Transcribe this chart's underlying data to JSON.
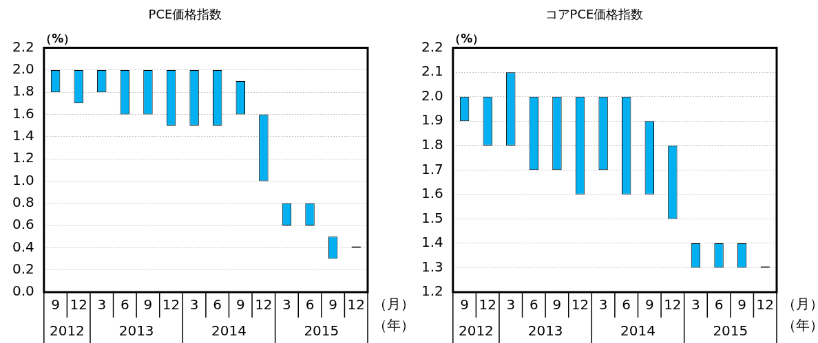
{
  "chart_data": [
    {
      "type": "bar",
      "title": "PCE価格指数",
      "ylabel": "（%）",
      "categories": [
        "9",
        "12",
        "3",
        "6",
        "9",
        "12",
        "3",
        "6",
        "9",
        "12",
        "3",
        "6",
        "9",
        "12"
      ],
      "base": [
        1.8,
        1.7,
        1.8,
        1.6,
        1.6,
        1.5,
        1.5,
        1.5,
        1.6,
        1.0,
        0.6,
        0.6,
        0.3,
        0.4
      ],
      "values": [
        0.2,
        0.3,
        0.2,
        0.4,
        0.4,
        0.5,
        0.5,
        0.5,
        0.3,
        0.6,
        0.2,
        0.2,
        0.2,
        0
      ],
      "colors": [
        "#00b0f0",
        "#00b0f0",
        "#00b0f0",
        "#00b0f0",
        "#00b0f0",
        "#00b0f0",
        "#00b0f0",
        "#00b0f0",
        "#00b0f0",
        "#00b0f0",
        "#00b0f0",
        "#00b0f0",
        "#00b0f0",
        "#000000"
      ],
      "ylim": [
        0,
        2.2
      ],
      "yticks": [
        {
          "value": 0,
          "label": "0.0"
        },
        {
          "value": 0.2,
          "label": "0.2"
        },
        {
          "value": 0.4,
          "label": "0.4"
        },
        {
          "value": 0.6,
          "label": "0.6"
        },
        {
          "value": 0.8,
          "label": "0.8"
        },
        {
          "value": 1,
          "label": "1.0"
        },
        {
          "value": 1.2,
          "label": "1.2"
        },
        {
          "value": 1.4,
          "label": "1.4"
        },
        {
          "value": 1.6,
          "label": "1.6"
        },
        {
          "value": 1.8,
          "label": "1.8"
        },
        {
          "value": 2,
          "label": "2.0"
        },
        {
          "value": 2.2,
          "label": "2.2"
        }
      ],
      "grid": "y",
      "annotations": [
        "（月）",
        "（年）",
        "2012",
        "2013",
        "2014",
        "2015"
      ]
    },
    {
      "type": "bar",
      "title": "コアPCE価格指数",
      "ylabel": "（%）",
      "categories": [
        "9",
        "12",
        "3",
        "6",
        "9",
        "12",
        "3",
        "6",
        "9",
        "12",
        "3",
        "6",
        "9",
        "12"
      ],
      "base": [
        1.9,
        1.8,
        1.8,
        1.7,
        1.7,
        1.6,
        1.7,
        1.6,
        1.6,
        1.5,
        1.3,
        1.3,
        1.3,
        1.3
      ],
      "values": [
        0.1,
        0.2,
        0.3,
        0.3,
        0.3,
        0.4,
        0.3,
        0.4,
        0.3,
        0.3,
        0.1,
        0.1,
        0.1,
        0
      ],
      "colors": [
        "#00b0f0",
        "#00b0f0",
        "#00b0f0",
        "#00b0f0",
        "#00b0f0",
        "#00b0f0",
        "#00b0f0",
        "#00b0f0",
        "#00b0f0",
        "#00b0f0",
        "#00b0f0",
        "#00b0f0",
        "#00b0f0",
        "#000000"
      ],
      "ylim": [
        1.2,
        2.2
      ],
      "yticks": [
        {
          "value": 1.2,
          "label": "1.2"
        },
        {
          "value": 1.3,
          "label": "1.3"
        },
        {
          "value": 1.4,
          "label": "1.4"
        },
        {
          "value": 1.5,
          "label": "1.5"
        },
        {
          "value": 1.6,
          "label": "1.6"
        },
        {
          "value": 1.7,
          "label": "1.7"
        },
        {
          "value": 1.8,
          "label": "1.8"
        },
        {
          "value": 1.9,
          "label": "1.9"
        },
        {
          "value": 2,
          "label": "2.0"
        },
        {
          "value": 2.1,
          "label": "2.1"
        },
        {
          "value": 2.2,
          "label": "2.2"
        }
      ],
      "grid": "y",
      "annotations": [
        "（月）",
        "（年）",
        "2012",
        "2013",
        "2014",
        "2015"
      ]
    }
  ]
}
